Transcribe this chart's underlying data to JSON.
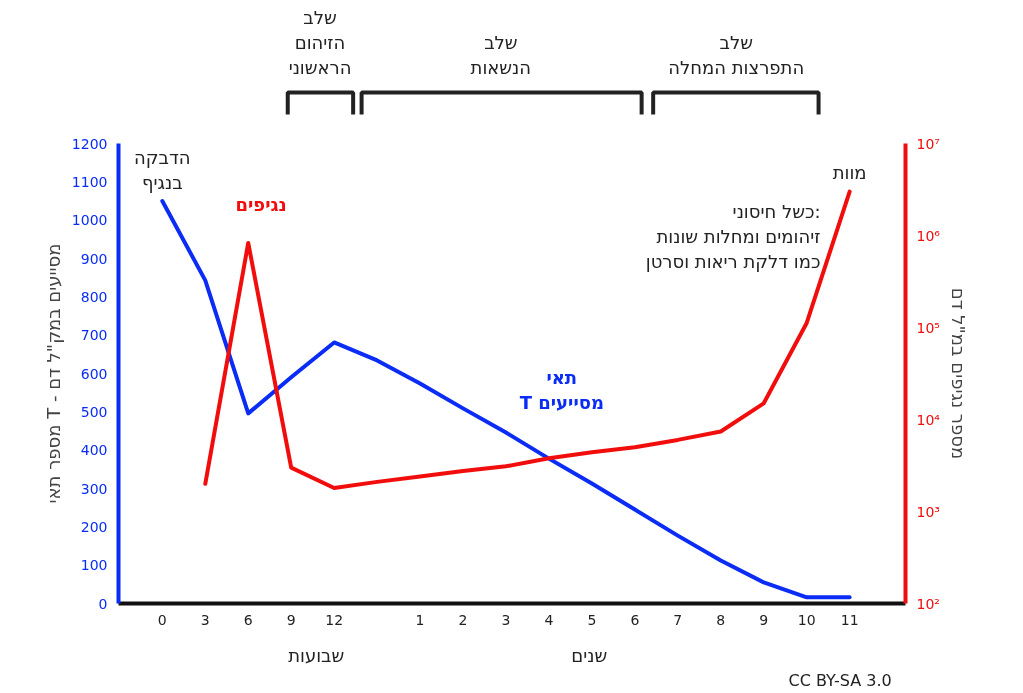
{
  "chart_data": {
    "type": "line",
    "ylabel": "מספר תאי T - מסייעים במק\"ל דם",
    "y2label": "מספר נגיפים במ\"ל דם",
    "categories": [
      "0",
      "3",
      "6",
      "9",
      "12",
      null,
      "1",
      "2",
      "3",
      "4",
      "5",
      "6",
      "7",
      "8",
      "9",
      "10",
      "11"
    ],
    "series": [
      {
        "name": "תאי\nT מסייעים",
        "color": "#0a2cf5",
        "axis": "y",
        "values": [
          1050,
          843,
          496,
          590,
          681,
          634,
          574,
          509,
          446,
          378,
          313,
          245,
          177,
          112,
          55,
          16,
          16
        ]
      },
      {
        "name": "נגיפים",
        "color": "#f20d0d",
        "axis": "y2",
        "values": [
          null,
          2000,
          830000,
          3000,
          1800,
          2100,
          2400,
          2750,
          3100,
          3800,
          4400,
          5000,
          6000,
          7400,
          15000,
          112000,
          3000000
        ]
      }
    ],
    "ylim": [
      0,
      1200
    ],
    "yticks": [
      0,
      100,
      200,
      300,
      400,
      500,
      600,
      700,
      800,
      900,
      1000,
      1100,
      1200
    ],
    "log": "y2",
    "y2lim": [
      100,
      10000000
    ],
    "y2ticks": [
      {
        "value": 100,
        "label": "10²"
      },
      {
        "value": 1000,
        "label": "10³"
      },
      {
        "value": 10000,
        "label": "10⁴"
      },
      {
        "value": 100000,
        "label": "10⁵"
      },
      {
        "value": 1000000,
        "label": "10⁶"
      },
      {
        "value": 10000000,
        "label": "10⁷"
      }
    ],
    "annotations": [
      {
        "text": "הדבקה\nבנגיף",
        "x": "0",
        "y": 1050
      },
      {
        "text": "מוות",
        "x": "11",
        "y": 1077
      },
      "שלב\nהזיהום\nהראשוני",
      "שלב\nהנשאות",
      "שלב\nהתפרצות המחלה",
      "כשל חיסוני:\nזיהומים ומחלות שונות\nכמו דלקת ריאות וסרטן",
      "שבועות",
      "שנים",
      "CC BY-SA 3.0"
    ],
    "grid": false,
    "marker": "none",
    "line_style": "solid"
  }
}
